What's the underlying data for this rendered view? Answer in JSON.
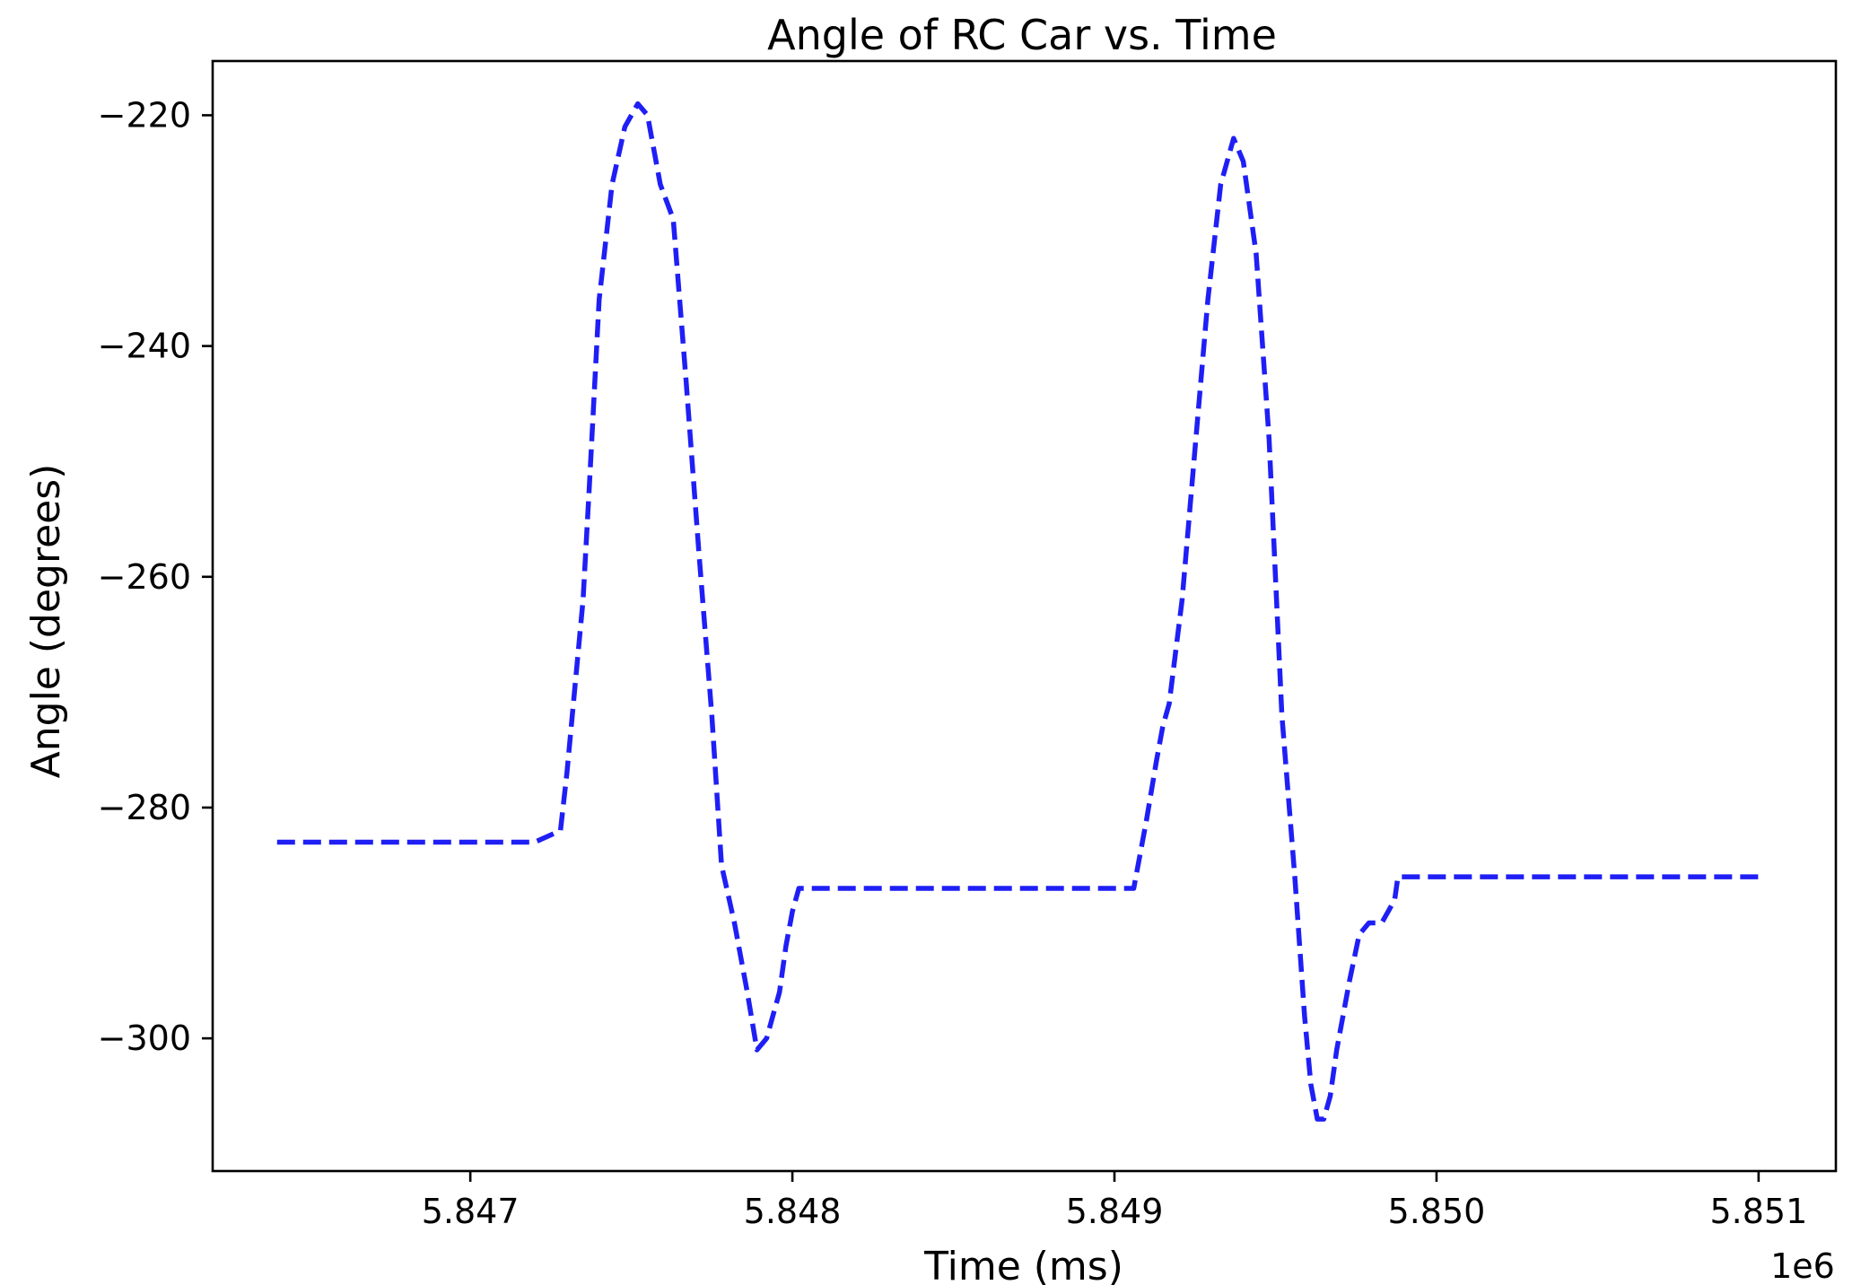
{
  "chart_data": {
    "type": "line",
    "title": "Angle of RC Car vs. Time",
    "xlabel": "Time (ms)",
    "ylabel": "Angle (degrees)",
    "x_offset_label": "1e6",
    "xlim": [
      5.8462,
      5.85124
    ],
    "ylim": [
      -311.5,
      -215.3
    ],
    "grid": false,
    "x_ticks": [
      5.847,
      5.848,
      5.849,
      5.85,
      5.851
    ],
    "x_tick_labels": [
      "5.847",
      "5.848",
      "5.849",
      "5.850",
      "5.851"
    ],
    "y_ticks": [
      -220,
      -240,
      -260,
      -280,
      -300
    ],
    "y_tick_labels": [
      "−220",
      "−240",
      "−260",
      "−280",
      "−300"
    ],
    "series": [
      {
        "color": "#1f1ff5",
        "line_style": "dashed",
        "x": [
          5.8464,
          5.8472,
          5.84728,
          5.8473,
          5.84733,
          5.84735,
          5.84737,
          5.8474,
          5.84744,
          5.84748,
          5.84752,
          5.84755,
          5.84759,
          5.84763,
          5.84767,
          5.84771,
          5.84775,
          5.84778,
          5.84782,
          5.84786,
          5.84789,
          5.84792,
          5.84794,
          5.84796,
          5.84798,
          5.848,
          5.84802,
          5.84805,
          5.84809,
          5.8481,
          5.84812,
          5.84814,
          5.8482,
          5.84906,
          5.84908,
          5.8491,
          5.84913,
          5.84915,
          5.84917,
          5.84921,
          5.84925,
          5.84929,
          5.84933,
          5.84937,
          5.8494,
          5.84944,
          5.84948,
          5.84952,
          5.84956,
          5.84959,
          5.84961,
          5.84963,
          5.84965,
          5.84967,
          5.84969,
          5.84973,
          5.84976,
          5.84979,
          5.84983,
          5.84987,
          5.84988,
          5.8499,
          5.851
        ],
        "y": [
          -283,
          -283,
          -282,
          -277,
          -268,
          -262,
          -252,
          -236,
          -226,
          -221,
          -219,
          -220,
          -226,
          -229,
          -243,
          -258,
          -272,
          -285,
          -290,
          -296,
          -301,
          -300,
          -298,
          -296,
          -292,
          -289,
          -287,
          -287,
          -287,
          -287,
          -287,
          -287,
          -287,
          -287,
          -284,
          -281,
          -276,
          -273,
          -271,
          -262,
          -249,
          -236,
          -226,
          -222,
          -224,
          -232,
          -248,
          -272,
          -286,
          -298,
          -304,
          -307,
          -307,
          -305,
          -301,
          -295,
          -291,
          -290,
          -290,
          -288,
          -286,
          -286,
          -286
        ]
      }
    ]
  }
}
